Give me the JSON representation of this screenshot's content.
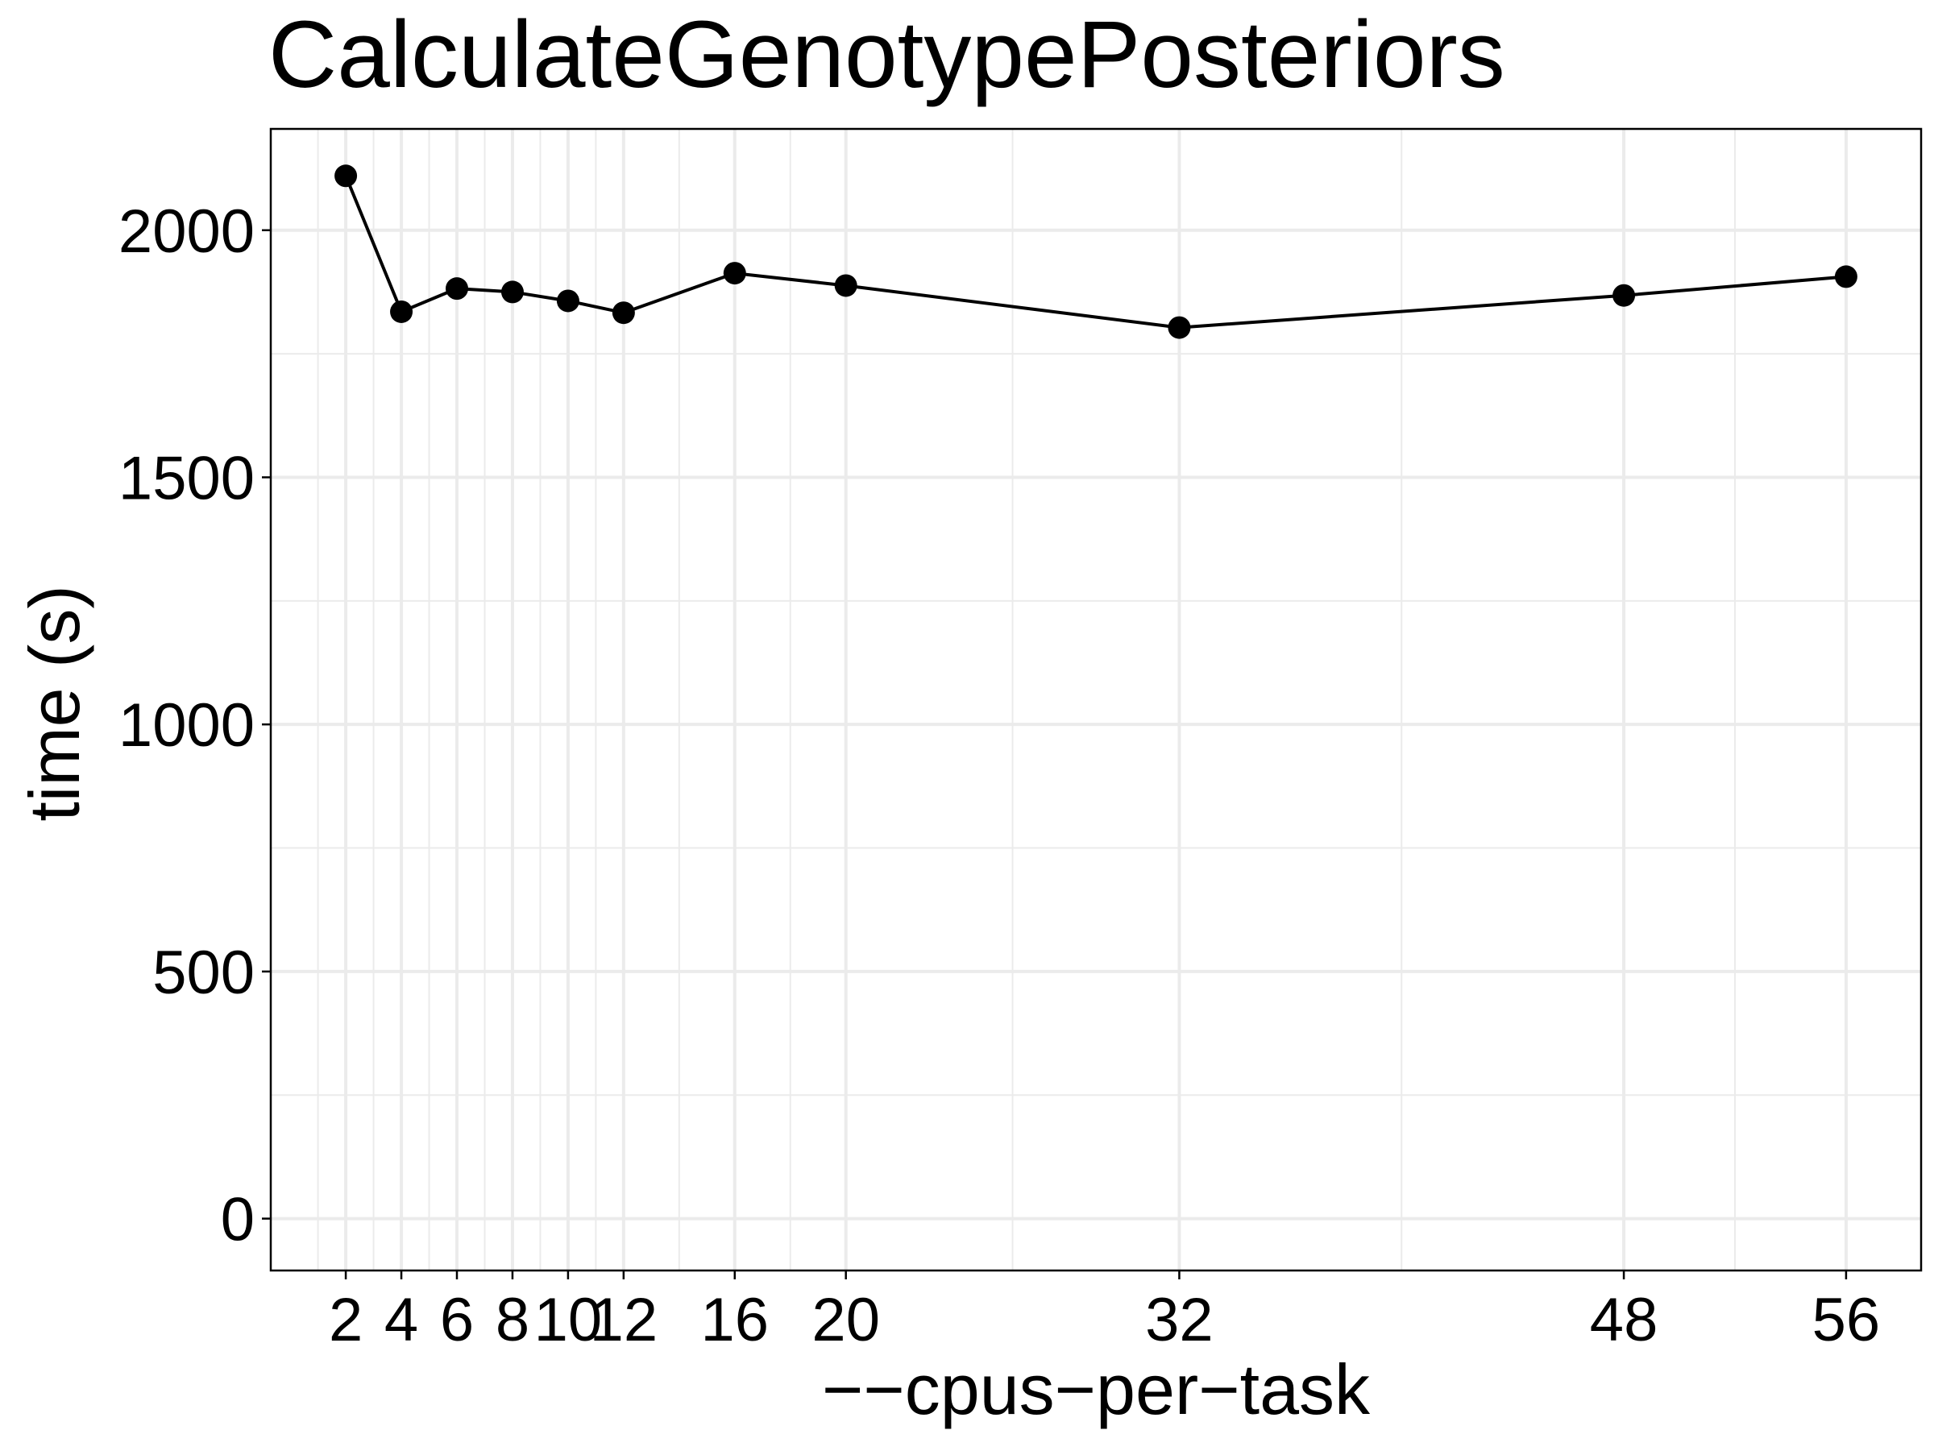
{
  "chart_data": {
    "type": "line",
    "title": "CalculateGenotypePosteriors",
    "xlabel": "−−cpus−per−task",
    "ylabel": "time (s)",
    "x": [
      2,
      4,
      6,
      8,
      10,
      12,
      16,
      20,
      32,
      48,
      56
    ],
    "x_tick_labels": [
      "2",
      "4",
      "6",
      "8",
      "10",
      "12",
      "16",
      "20",
      "32",
      "48",
      "56"
    ],
    "y_ticks": [
      0,
      500,
      1000,
      1500,
      2000
    ],
    "y_tick_labels": [
      "0",
      "500",
      "1000",
      "1500",
      "2000"
    ],
    "series": [
      {
        "values": [
          2110,
          1835,
          1882,
          1875,
          1857,
          1833,
          1913,
          1888,
          1803,
          1868,
          1906
        ]
      }
    ],
    "xlim": [
      -0.7,
      58.7
    ],
    "ylim": [
      -105,
      2205
    ],
    "grid": true,
    "colors": {
      "line": "#000000",
      "points": "#000000",
      "grid": "#ebebeb",
      "background": "#ffffff"
    }
  }
}
